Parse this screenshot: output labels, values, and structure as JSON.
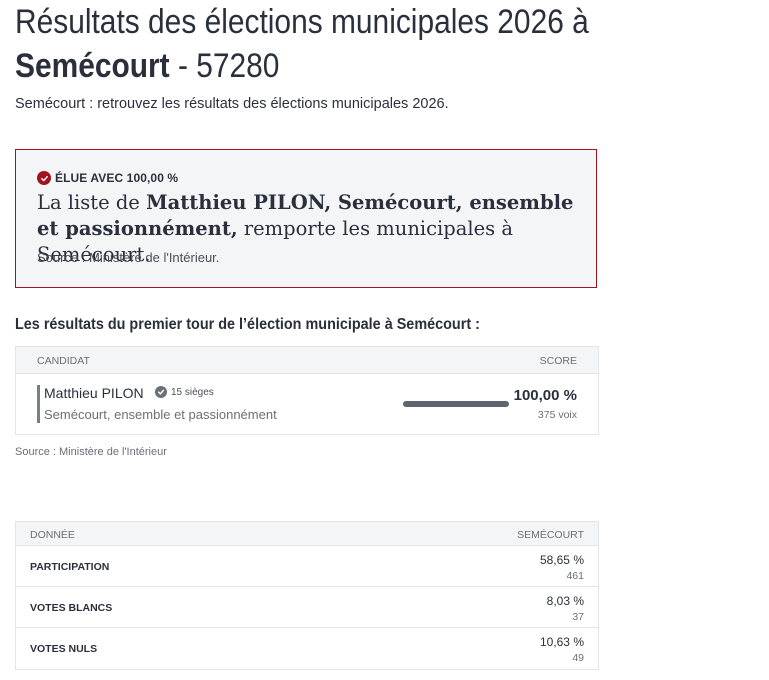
{
  "header": {
    "title_main": "Résultats des élections municipales 2026 à",
    "title_commune": "Semécourt",
    "title_sep": " - ",
    "title_postcode": "57280",
    "subtitle": "Semécourt : retrouvez les résultats des élections municipales 2026."
  },
  "winner": {
    "badge": "ÉLUE AVEC 100,00 %",
    "sentence_prefix": "La liste de ",
    "list_name": "Matthieu PILON, Semécourt, ensemble et passionnément,",
    "sentence_suffix": " remporte les municipales à Semécourt.",
    "source": "Source : Ministère de l'Intérieur.",
    "accent_color": "#a2121f"
  },
  "results": {
    "section_title": "Les résultats du premier tour de l’élection municipale à Semécourt :",
    "col_candidate": "CANDIDAT",
    "col_score": "SCORE",
    "candidates": [
      {
        "name": "Matthieu PILON",
        "seats": "15 sièges",
        "party": "Semécourt, ensemble et passionnément",
        "percent": "100,00 %",
        "percent_value": 100,
        "votes": "375 voix"
      }
    ],
    "source": "Source : Ministère de l'Intérieur"
  },
  "data_table": {
    "col_label": "DONNÉE",
    "col_value": "SEMÉCOURT",
    "rows": [
      {
        "label": "PARTICIPATION",
        "percent": "58,65 %",
        "count": "461"
      },
      {
        "label": "VOTES BLANCS",
        "percent": "8,03 %",
        "count": "37"
      },
      {
        "label": "VOTES NULS",
        "percent": "10,63 %",
        "count": "49"
      }
    ]
  },
  "icons": {
    "badge": "check-circle-icon",
    "seats": "check-circle-icon"
  }
}
